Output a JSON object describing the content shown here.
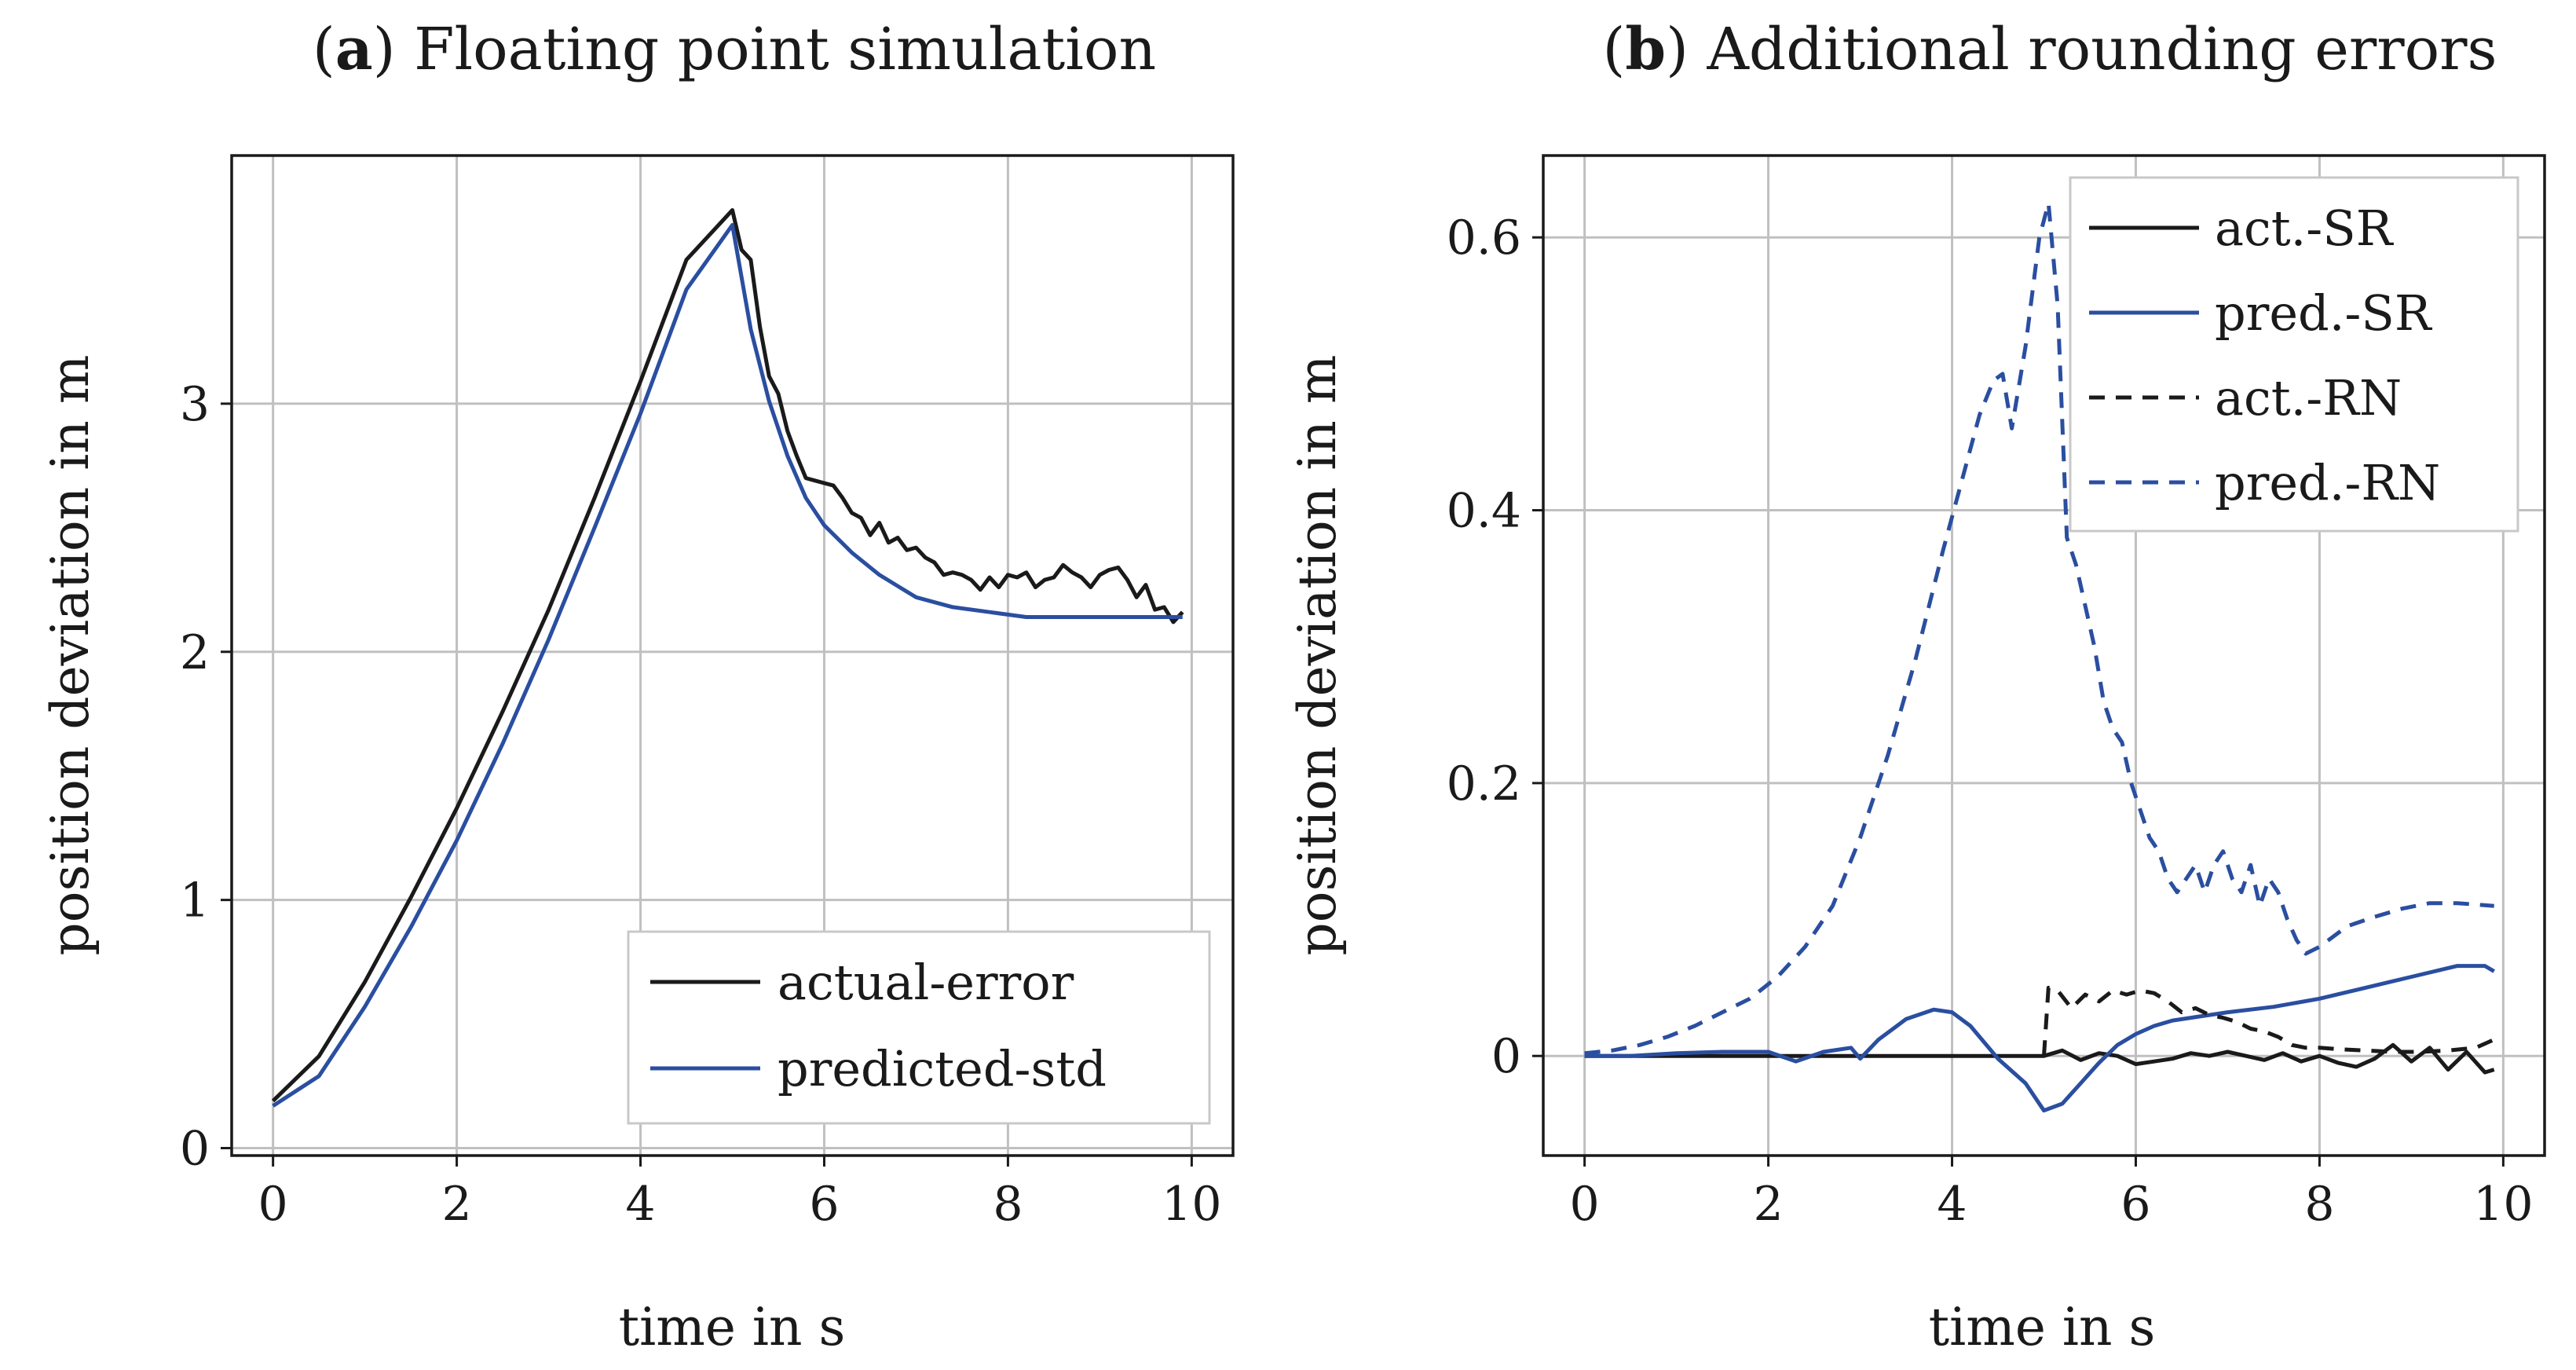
{
  "colors": {
    "black": "#1a1a1a",
    "blue": "#2a4ea0",
    "grid": "#c0c0c0"
  },
  "chart_data": [
    {
      "type": "line",
      "panel_letter": "a",
      "title": "Floating point simulation",
      "xlabel": "time in s",
      "ylabel": "position deviation in m",
      "xlim": [
        -0.45,
        10.45
      ],
      "ylim": [
        -0.03,
        4.0
      ],
      "xticks": [
        0,
        2,
        4,
        6,
        8,
        10
      ],
      "yticks": [
        0,
        1,
        2,
        3
      ],
      "grid": true,
      "legend_position": "bottom-right",
      "series": [
        {
          "name": "actual-error",
          "color": "#1a1a1a",
          "dash": "solid",
          "x": [
            0,
            0.5,
            1.0,
            1.5,
            2.0,
            2.5,
            3.0,
            3.5,
            4.0,
            4.5,
            5.0,
            5.1,
            5.2,
            5.3,
            5.4,
            5.5,
            5.6,
            5.7,
            5.8,
            5.9,
            6.0,
            6.1,
            6.2,
            6.3,
            6.4,
            6.5,
            6.6,
            6.7,
            6.8,
            6.9,
            7.0,
            7.1,
            7.2,
            7.3,
            7.4,
            7.5,
            7.6,
            7.7,
            7.8,
            7.9,
            8.0,
            8.1,
            8.2,
            8.3,
            8.4,
            8.5,
            8.6,
            8.7,
            8.8,
            8.9,
            9.0,
            9.1,
            9.2,
            9.3,
            9.4,
            9.5,
            9.6,
            9.7,
            9.8,
            9.9
          ],
          "y": [
            0.19,
            0.37,
            0.67,
            1.01,
            1.37,
            1.76,
            2.17,
            2.62,
            3.09,
            3.58,
            3.78,
            3.62,
            3.58,
            3.31,
            3.11,
            3.04,
            2.89,
            2.79,
            2.7,
            2.69,
            2.68,
            2.67,
            2.62,
            2.56,
            2.54,
            2.47,
            2.52,
            2.44,
            2.46,
            2.41,
            2.42,
            2.38,
            2.36,
            2.31,
            2.32,
            2.31,
            2.29,
            2.25,
            2.3,
            2.26,
            2.31,
            2.3,
            2.32,
            2.26,
            2.29,
            2.3,
            2.35,
            2.32,
            2.3,
            2.26,
            2.31,
            2.33,
            2.34,
            2.29,
            2.22,
            2.27,
            2.17,
            2.18,
            2.12,
            2.16
          ]
        },
        {
          "name": "predicted-std",
          "color": "#2a4ea0",
          "dash": "solid",
          "x": [
            0,
            0.5,
            1.0,
            1.5,
            2.0,
            2.5,
            3.0,
            3.5,
            4.0,
            4.5,
            5.0,
            5.2,
            5.4,
            5.6,
            5.8,
            6.0,
            6.3,
            6.6,
            7.0,
            7.4,
            7.8,
            8.2,
            8.6,
            9.0,
            9.5,
            9.9
          ],
          "y": [
            0.17,
            0.29,
            0.57,
            0.89,
            1.24,
            1.63,
            2.05,
            2.5,
            2.96,
            3.46,
            3.72,
            3.3,
            3.01,
            2.79,
            2.62,
            2.51,
            2.4,
            2.31,
            2.22,
            2.18,
            2.16,
            2.14,
            2.14,
            2.14,
            2.14,
            2.14
          ]
        }
      ]
    },
    {
      "type": "line",
      "panel_letter": "b",
      "title": "Additional rounding errors",
      "xlabel": "time in s",
      "ylabel": "position deviation in m",
      "xlim": [
        -0.45,
        10.45
      ],
      "ylim": [
        -0.073,
        0.66
      ],
      "xticks": [
        0,
        2,
        4,
        6,
        8,
        10
      ],
      "yticks": [
        0,
        0.2,
        0.4,
        0.6
      ],
      "grid": true,
      "legend_position": "top-right",
      "series": [
        {
          "name": "act.-SR",
          "color": "#1a1a1a",
          "dash": "solid",
          "x": [
            0,
            1,
            2,
            3,
            4,
            5.0,
            5.2,
            5.4,
            5.6,
            5.8,
            6.0,
            6.2,
            6.4,
            6.6,
            6.8,
            7.0,
            7.2,
            7.4,
            7.6,
            7.8,
            8.0,
            8.2,
            8.4,
            8.6,
            8.8,
            9.0,
            9.2,
            9.4,
            9.6,
            9.8,
            9.9
          ],
          "y": [
            0.0,
            0.0,
            0.0,
            0.0,
            0.0,
            0.0,
            0.004,
            -0.003,
            0.002,
            0.0,
            -0.006,
            -0.004,
            -0.002,
            0.002,
            0.0,
            0.003,
            0.0,
            -0.003,
            0.002,
            -0.004,
            0.0,
            -0.005,
            -0.008,
            -0.002,
            0.008,
            -0.004,
            0.006,
            -0.01,
            0.003,
            -0.012,
            -0.01
          ]
        },
        {
          "name": "pred.-SR",
          "color": "#2a4ea0",
          "dash": "solid",
          "x": [
            0,
            0.5,
            1.0,
            1.5,
            2.0,
            2.3,
            2.6,
            2.9,
            3.0,
            3.2,
            3.5,
            3.8,
            4.0,
            4.2,
            4.5,
            4.8,
            5.0,
            5.2,
            5.4,
            5.6,
            5.8,
            6.0,
            6.2,
            6.4,
            6.6,
            6.8,
            7.0,
            7.5,
            8.0,
            8.5,
            9.0,
            9.5,
            9.8,
            9.9
          ],
          "y": [
            0.0,
            0.0,
            0.002,
            0.003,
            0.003,
            -0.004,
            0.003,
            0.006,
            -0.002,
            0.012,
            0.027,
            0.034,
            0.032,
            0.022,
            -0.002,
            -0.02,
            -0.04,
            -0.035,
            -0.02,
            -0.005,
            0.008,
            0.016,
            0.022,
            0.026,
            0.028,
            0.03,
            0.032,
            0.036,
            0.042,
            0.05,
            0.058,
            0.066,
            0.066,
            0.062
          ]
        },
        {
          "name": "act.-RN",
          "color": "#1a1a1a",
          "dash": "dashed",
          "x": [
            5.0,
            5.05,
            5.15,
            5.3,
            5.45,
            5.6,
            5.75,
            5.9,
            6.05,
            6.2,
            6.35,
            6.5,
            6.65,
            6.8,
            6.95,
            7.1,
            7.25,
            7.4,
            7.55,
            7.7,
            7.85,
            8.0,
            8.2,
            8.5,
            8.8,
            9.1,
            9.4,
            9.7,
            9.9
          ],
          "y": [
            0.0,
            0.05,
            0.048,
            0.035,
            0.045,
            0.04,
            0.048,
            0.045,
            0.048,
            0.046,
            0.04,
            0.032,
            0.035,
            0.03,
            0.028,
            0.025,
            0.02,
            0.018,
            0.014,
            0.008,
            0.006,
            0.006,
            0.005,
            0.004,
            0.003,
            0.003,
            0.004,
            0.006,
            0.012
          ]
        },
        {
          "name": "pred.-RN",
          "color": "#2a4ea0",
          "dash": "dashed",
          "x": [
            0,
            0.3,
            0.6,
            0.9,
            1.2,
            1.5,
            1.8,
            2.1,
            2.4,
            2.7,
            3.0,
            3.3,
            3.6,
            3.9,
            4.1,
            4.3,
            4.45,
            4.55,
            4.65,
            4.8,
            4.95,
            5.05,
            5.15,
            5.25,
            5.35,
            5.45,
            5.55,
            5.65,
            5.75,
            5.85,
            5.95,
            6.05,
            6.15,
            6.25,
            6.35,
            6.45,
            6.55,
            6.65,
            6.75,
            6.85,
            6.95,
            7.05,
            7.15,
            7.25,
            7.35,
            7.45,
            7.55,
            7.65,
            7.75,
            7.85,
            8.0,
            8.3,
            8.6,
            8.9,
            9.2,
            9.5,
            9.9
          ],
          "y": [
            0.002,
            0.004,
            0.008,
            0.014,
            0.022,
            0.032,
            0.042,
            0.058,
            0.08,
            0.11,
            0.16,
            0.22,
            0.29,
            0.37,
            0.42,
            0.47,
            0.495,
            0.5,
            0.46,
            0.52,
            0.6,
            0.625,
            0.55,
            0.38,
            0.36,
            0.33,
            0.3,
            0.26,
            0.24,
            0.23,
            0.2,
            0.18,
            0.16,
            0.15,
            0.13,
            0.12,
            0.13,
            0.14,
            0.12,
            0.14,
            0.15,
            0.13,
            0.12,
            0.14,
            0.11,
            0.13,
            0.12,
            0.1,
            0.085,
            0.075,
            0.08,
            0.095,
            0.102,
            0.108,
            0.112,
            0.112,
            0.11
          ]
        }
      ]
    }
  ]
}
